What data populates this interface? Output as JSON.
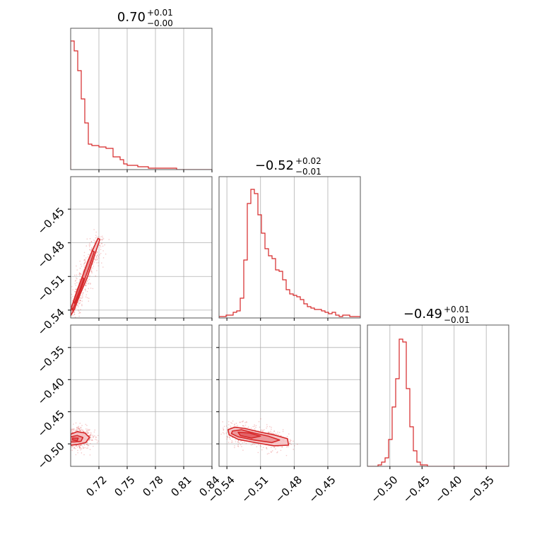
{
  "chart_data": {
    "type": "corner",
    "accent_color": "#d62728",
    "grid": true,
    "parameters": [
      {
        "title": {
          "median": "0.70",
          "plus": "+0.01",
          "minus": "−0.00"
        },
        "range": [
          0.69,
          0.84
        ],
        "ticks": [
          0.72,
          0.75,
          0.78,
          0.81,
          0.84
        ],
        "tick_labels": [
          "0.72",
          "0.75",
          "0.78",
          "0.81",
          "0.84"
        ]
      },
      {
        "title": {
          "median": "−0.52",
          "plus": "+0.02",
          "minus": "−0.01"
        },
        "range": [
          -0.547,
          -0.421
        ],
        "ticks": [
          -0.54,
          -0.51,
          -0.48,
          -0.45
        ],
        "tick_labels": [
          "−0.54",
          "−0.51",
          "−0.48",
          "−0.45"
        ]
      },
      {
        "title": {
          "median": "−0.49",
          "plus": "+0.01",
          "minus": "−0.01"
        },
        "range": [
          -0.535,
          -0.315
        ],
        "ticks": [
          -0.5,
          -0.45,
          -0.4,
          -0.35
        ],
        "tick_labels": [
          "−0.50",
          "−0.45",
          "−0.40",
          "−0.35"
        ]
      }
    ],
    "hist1d": [
      {
        "rel_heights": [
          0.91,
          0.84,
          0.7,
          0.5,
          0.33,
          0.18,
          0.17,
          0.17,
          0.16,
          0.16,
          0.15,
          0.15,
          0.09,
          0.09,
          0.07,
          0.04,
          0.03,
          0.03,
          0.03,
          0.02,
          0.02,
          0.02,
          0.01,
          0.01,
          0.01,
          0.01,
          0.01,
          0.01,
          0.01,
          0.01,
          0,
          0,
          0,
          0,
          0,
          0,
          0,
          0,
          0,
          0
        ]
      },
      {
        "rel_heights": [
          0.01,
          0.01,
          0.02,
          0.02,
          0.04,
          0.05,
          0.14,
          0.41,
          0.81,
          0.91,
          0.88,
          0.73,
          0.6,
          0.49,
          0.44,
          0.42,
          0.34,
          0.33,
          0.27,
          0.2,
          0.17,
          0.16,
          0.15,
          0.13,
          0.1,
          0.08,
          0.07,
          0.06,
          0.06,
          0.05,
          0.04,
          0.03,
          0.04,
          0.02,
          0.01,
          0.02,
          0.02,
          0.01,
          0.01,
          0.01
        ]
      },
      {
        "rel_heights": [
          0,
          0,
          0,
          0.01,
          0.03,
          0.06,
          0.19,
          0.42,
          0.62,
          0.9,
          0.88,
          0.55,
          0.28,
          0.11,
          0.03,
          0.01,
          0.01,
          0,
          0,
          0,
          0,
          0,
          0,
          0,
          0,
          0,
          0,
          0,
          0,
          0,
          0,
          0,
          0,
          0,
          0,
          0,
          0,
          0,
          0,
          0
        ]
      }
    ],
    "contours2d": [
      {
        "x_param": 0,
        "y_param": 1,
        "levels": [
          [
            [
              0.69,
              -0.541
            ],
            [
              0.695,
              -0.529
            ],
            [
              0.701,
              -0.515
            ],
            [
              0.707,
              -0.501
            ],
            [
              0.713,
              -0.487
            ],
            [
              0.719,
              -0.476
            ],
            [
              0.721,
              -0.477
            ],
            [
              0.715,
              -0.492
            ],
            [
              0.708,
              -0.51
            ],
            [
              0.7,
              -0.526
            ],
            [
              0.694,
              -0.539
            ],
            [
              0.69,
              -0.545
            ]
          ],
          [
            [
              0.691,
              -0.537
            ],
            [
              0.696,
              -0.525
            ],
            [
              0.702,
              -0.511
            ],
            [
              0.708,
              -0.497
            ],
            [
              0.713,
              -0.487
            ],
            [
              0.715,
              -0.488
            ],
            [
              0.709,
              -0.503
            ],
            [
              0.702,
              -0.519
            ],
            [
              0.696,
              -0.532
            ],
            [
              0.692,
              -0.54
            ]
          ],
          [
            [
              0.693,
              -0.532
            ],
            [
              0.697,
              -0.522
            ],
            [
              0.702,
              -0.511
            ],
            [
              0.704,
              -0.512
            ],
            [
              0.699,
              -0.524
            ],
            [
              0.694,
              -0.534
            ]
          ]
        ],
        "scatter_seed": 11
      },
      {
        "x_param": 0,
        "y_param": 2,
        "levels": [
          [
            [
              0.69,
              -0.485
            ],
            [
              0.697,
              -0.481
            ],
            [
              0.705,
              -0.483
            ],
            [
              0.71,
              -0.49
            ],
            [
              0.706,
              -0.498
            ],
            [
              0.697,
              -0.501
            ],
            [
              0.69,
              -0.502
            ]
          ],
          [
            [
              0.69,
              -0.489
            ],
            [
              0.697,
              -0.487
            ],
            [
              0.703,
              -0.49
            ],
            [
              0.701,
              -0.496
            ],
            [
              0.694,
              -0.497
            ],
            [
              0.69,
              -0.497
            ]
          ],
          [
            [
              0.692,
              -0.491
            ],
            [
              0.698,
              -0.491
            ],
            [
              0.697,
              -0.495
            ],
            [
              0.692,
              -0.494
            ]
          ]
        ],
        "scatter_seed": 23
      },
      {
        "x_param": 1,
        "y_param": 2,
        "levels": [
          [
            [
              -0.539,
              -0.478
            ],
            [
              -0.533,
              -0.474
            ],
            [
              -0.524,
              -0.476
            ],
            [
              -0.512,
              -0.481
            ],
            [
              -0.498,
              -0.486
            ],
            [
              -0.486,
              -0.492
            ],
            [
              -0.485,
              -0.502
            ],
            [
              -0.498,
              -0.503
            ],
            [
              -0.515,
              -0.498
            ],
            [
              -0.53,
              -0.493
            ],
            [
              -0.538,
              -0.486
            ]
          ],
          [
            [
              -0.535,
              -0.48
            ],
            [
              -0.527,
              -0.478
            ],
            [
              -0.516,
              -0.483
            ],
            [
              -0.503,
              -0.488
            ],
            [
              -0.493,
              -0.494
            ],
            [
              -0.5,
              -0.498
            ],
            [
              -0.516,
              -0.494
            ],
            [
              -0.53,
              -0.489
            ],
            [
              -0.536,
              -0.484
            ]
          ],
          [
            [
              -0.53,
              -0.482
            ],
            [
              -0.52,
              -0.483
            ],
            [
              -0.51,
              -0.488
            ],
            [
              -0.518,
              -0.491
            ],
            [
              -0.528,
              -0.487
            ]
          ]
        ],
        "scatter_seed": 37
      }
    ]
  }
}
